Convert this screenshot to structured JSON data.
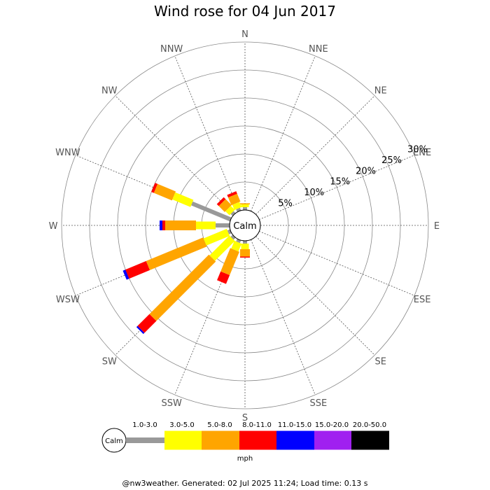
{
  "title": "Wind rose for 04 Jun 2017",
  "footer": "@nw3weather. Generated: 02 Jul 2025 11:24; Load time: 0.13 s",
  "chart_data": {
    "type": "windrose",
    "title": "Wind rose for 04 Jun 2017",
    "directions": [
      "N",
      "NNE",
      "NE",
      "ENE",
      "E",
      "ESE",
      "SE",
      "SSE",
      "S",
      "SSW",
      "SW",
      "WSW",
      "W",
      "WNW",
      "NW",
      "NNW"
    ],
    "radial_ticks": [
      "5%",
      "10%",
      "15%",
      "20%",
      "25%",
      "30%"
    ],
    "radial_values": [
      5,
      10,
      15,
      20,
      25,
      30
    ],
    "rmax": 30,
    "calm_label": "Calm",
    "unit": "mph",
    "bins": [
      {
        "label": "1.0-3.0",
        "color": "#999999"
      },
      {
        "label": "3.0-5.0",
        "color": "#ffff00"
      },
      {
        "label": "5.0-8.0",
        "color": "#ffa500"
      },
      {
        "label": "8.0-11.0",
        "color": "#ff0000"
      },
      {
        "label": "11.0-15.0",
        "color": "#0000ff"
      },
      {
        "label": "15.0-20.0",
        "color": "#a020f0"
      },
      {
        "label": "20.0-50.0",
        "color": "#000000"
      }
    ],
    "cumulative_percent": {
      "S": [
        0.5,
        1.5,
        2.8,
        3.0
      ],
      "SSW": [
        0.5,
        2.0,
        6.5,
        8.2
      ],
      "SW": [
        0.5,
        5.5,
        20.5,
        23.5,
        23.8
      ],
      "WSW": [
        0.5,
        5.0,
        16.0,
        20.0,
        20.5
      ],
      "W": [
        2.5,
        6.0,
        11.5,
        12.0,
        12.5
      ],
      "WNW": [
        7.5,
        11.0,
        14.5,
        15.0
      ],
      "NW": [
        0.5,
        1.5,
        3.0,
        3.5
      ],
      "NNW": [
        0.5,
        1.5,
        3.0,
        3.5
      ],
      "N": [
        0.5,
        1.0,
        1.2
      ]
    }
  }
}
